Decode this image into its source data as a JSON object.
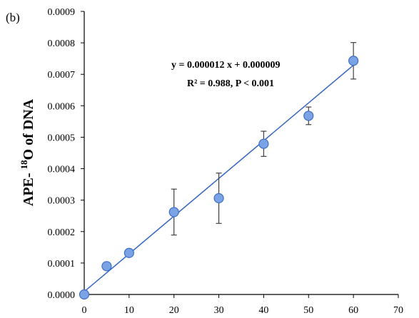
{
  "chart_data": {
    "type": "scatter",
    "panel_label": "(b)",
    "ylabel": {
      "prefix": "APE- ",
      "superscript": "18",
      "suffix": "O of DNA"
    },
    "xlabel": "",
    "xlim": [
      0,
      70
    ],
    "ylim": [
      0,
      0.0009
    ],
    "x_ticks": [
      "0",
      "10",
      "20",
      "30",
      "40",
      "50",
      "60",
      "70"
    ],
    "y_ticks": [
      "0.0000",
      "0.0001",
      "0.0002",
      "0.0003",
      "0.0004",
      "0.0005",
      "0.0006",
      "0.0007",
      "0.0008",
      "0.0009"
    ],
    "grid": false,
    "series": [
      {
        "x": [
          0,
          5,
          10,
          20,
          30,
          40,
          50,
          60
        ],
        "y": [
          0.0,
          9e-05,
          0.000132,
          0.000262,
          0.000306,
          0.000479,
          0.000568,
          0.000743
        ],
        "error": [
          null,
          null,
          null,
          7.3e-05,
          8e-05,
          4e-05,
          2.8e-05,
          5.8e-05
        ]
      }
    ],
    "trendline": {
      "slope": 1.2e-05,
      "intercept": 9e-06,
      "x_range": [
        0,
        60
      ]
    },
    "annotations": {
      "equation": "y = 0.000012 x + 0.000009",
      "stats": "R² = 0.988, P < 0.001"
    },
    "colors": {
      "marker_fill": "#7aa3e5",
      "marker_stroke": "#3f6fc4",
      "trendline": "#3466c0",
      "error_bar": "#404040",
      "axis": "#000000"
    }
  }
}
